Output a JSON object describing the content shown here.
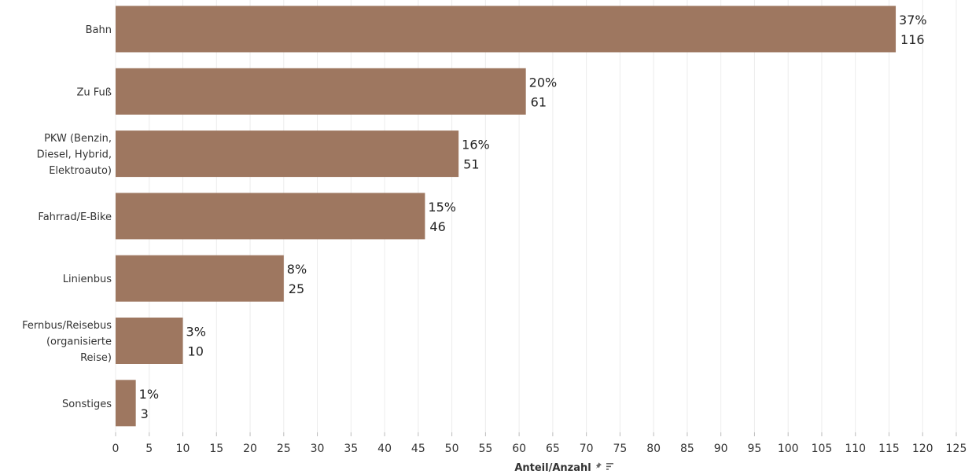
{
  "chart_data": {
    "type": "bar",
    "orientation": "horizontal",
    "categories": [
      [
        "Bahn"
      ],
      [
        "Zu Fuß"
      ],
      [
        "PKW (Benzin,",
        "Diesel, Hybrid,",
        "Elektroauto)"
      ],
      [
        "Fahrrad/E-Bike"
      ],
      [
        "Linienbus"
      ],
      [
        "Fernbus/Reisebus",
        "(organisierte",
        "Reise)"
      ],
      [
        "Sonstiges"
      ]
    ],
    "values": [
      116,
      61,
      51,
      46,
      25,
      10,
      3
    ],
    "percent_labels": [
      "37%",
      "20%",
      "16%",
      "15%",
      "8%",
      "3%",
      "1%"
    ],
    "count_labels": [
      "116",
      "61",
      "51",
      "46",
      "25",
      "10",
      "3"
    ],
    "xlabel": "Anteil/Anzahl",
    "xlim": [
      0,
      125
    ],
    "xticks": [
      0,
      5,
      10,
      15,
      20,
      25,
      30,
      35,
      40,
      45,
      50,
      55,
      60,
      65,
      70,
      75,
      80,
      85,
      90,
      95,
      100,
      105,
      110,
      115,
      120,
      125
    ],
    "grid": true,
    "bar_color": "#9e7760",
    "icons": [
      "pin-icon",
      "sort-icon"
    ]
  }
}
